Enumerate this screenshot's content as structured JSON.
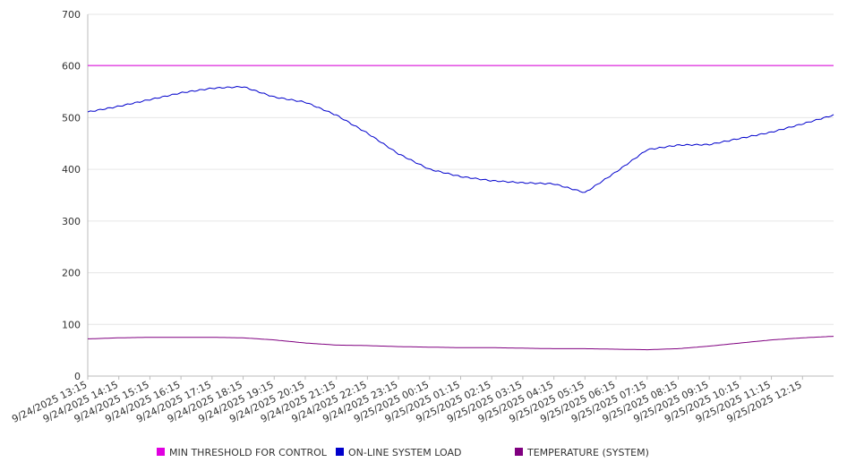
{
  "chart_data": {
    "type": "line",
    "ylim": [
      0,
      700
    ],
    "y_ticks": [
      0,
      100,
      200,
      300,
      400,
      500,
      600,
      700
    ],
    "x_tick_labels": [
      "9/24/2025 13:15",
      "9/24/2025 14:15",
      "9/24/2025 15:15",
      "9/24/2025 16:15",
      "9/24/2025 17:15",
      "9/24/2025 18:15",
      "9/24/2025 19:15",
      "9/24/2025 20:15",
      "9/24/2025 21:15",
      "9/24/2025 22:15",
      "9/24/2025 23:15",
      "9/25/2025 00:15",
      "9/25/2025 01:15",
      "9/25/2025 02:15",
      "9/25/2025 03:15",
      "9/25/2025 04:15",
      "9/25/2025 05:15",
      "9/25/2025 06:15",
      "9/25/2025 07:15",
      "9/25/2025 08:15",
      "9/25/2025 09:15",
      "9/25/2025 10:15",
      "9/25/2025 11:15",
      "9/25/2025 12:15"
    ],
    "x": [
      "9/24/2025 13:15",
      "9/24/2025 14:15",
      "9/24/2025 15:15",
      "9/24/2025 16:15",
      "9/24/2025 17:15",
      "9/24/2025 18:15",
      "9/24/2025 19:15",
      "9/24/2025 20:15",
      "9/24/2025 21:15",
      "9/24/2025 22:15",
      "9/24/2025 23:15",
      "9/25/2025 00:15",
      "9/25/2025 01:15",
      "9/25/2025 02:15",
      "9/25/2025 03:15",
      "9/25/2025 04:15",
      "9/25/2025 05:15",
      "9/25/2025 06:15",
      "9/25/2025 07:15",
      "9/25/2025 08:15",
      "9/25/2025 09:15",
      "9/25/2025 10:15",
      "9/25/2025 11:15",
      "9/25/2025 12:15",
      "9/25/2025 13:15"
    ],
    "grid": true,
    "legend_position": "bottom",
    "series": [
      {
        "name": "MIN THRESHOLD FOR CONTROL",
        "color": "#e000e0",
        "values": [
          601,
          601,
          601,
          601,
          601,
          601,
          601,
          601,
          601,
          601,
          601,
          601,
          601,
          601,
          601,
          601,
          601,
          601,
          601,
          601,
          601,
          601,
          601,
          601,
          601
        ]
      },
      {
        "name": "ON-LINE SYSTEM LOAD",
        "color": "#0000cc",
        "values": [
          511,
          522,
          535,
          548,
          557,
          560,
          540,
          530,
          505,
          470,
          430,
          400,
          386,
          378,
          374,
          372,
          355,
          395,
          438,
          447,
          448,
          460,
          472,
          488,
          505
        ]
      },
      {
        "name": "TEMPERATURE (SYSTEM)",
        "color": "#800080",
        "values": [
          72,
          74,
          75,
          75,
          75,
          74,
          70,
          64,
          60,
          59,
          57,
          56,
          55,
          55,
          54,
          53,
          53,
          52,
          51,
          53,
          58,
          64,
          70,
          74,
          77
        ]
      }
    ]
  }
}
